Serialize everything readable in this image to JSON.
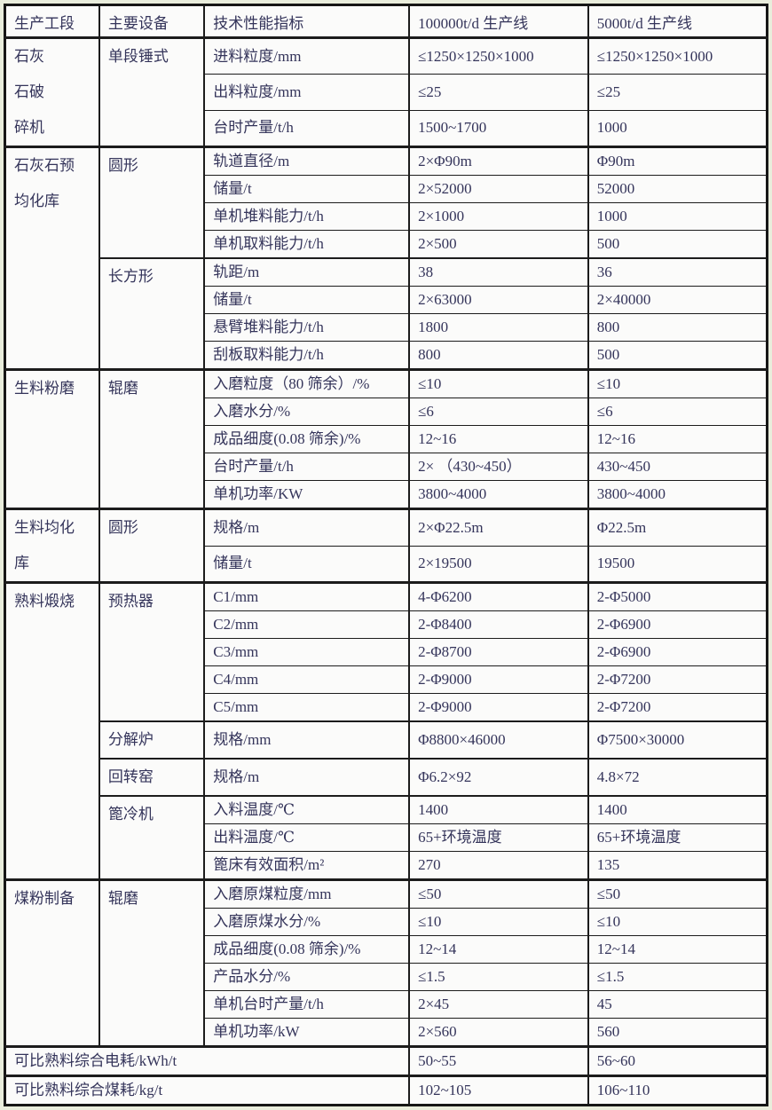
{
  "page": {
    "margin_color": "#e9eddc",
    "table_bg": "#fbfbfa",
    "border_color": "#1c1c1c",
    "text_color": "#34345a"
  },
  "header": {
    "columns": [
      "生产工段",
      "主要设备",
      "技术性能指标",
      "100000t/d 生产线",
      "5000t/d 生产线"
    ]
  },
  "sections": [
    {
      "stage": "石灰\n石破\n碎机",
      "groups": [
        {
          "equipment": "单段锤式",
          "rows": [
            {
              "indicator": "进料粒度/mm",
              "line1": "≤1250×1250×1000",
              "line2": "≤1250×1250×1000"
            },
            {
              "indicator": "出料粒度/mm",
              "line1": "≤25",
              "line2": "≤25"
            },
            {
              "indicator": "台时产量/t/h",
              "line1": "1500~1700",
              "line2": "1000"
            }
          ]
        }
      ]
    },
    {
      "stage": "石灰石预\n均化库",
      "groups": [
        {
          "equipment": "圆形",
          "rows": [
            {
              "indicator": "轨道直径/m",
              "line1": "2×Φ90m",
              "line2": "Φ90m"
            },
            {
              "indicator": "储量/t",
              "line1": "2×52000",
              "line2": "52000"
            },
            {
              "indicator": "单机堆料能力/t/h",
              "line1": "2×1000",
              "line2": "1000"
            },
            {
              "indicator": "单机取料能力/t/h",
              "line1": "2×500",
              "line2": "500"
            }
          ]
        },
        {
          "equipment": "长方形",
          "rows": [
            {
              "indicator": "轨距/m",
              "line1": "38",
              "line2": "36"
            },
            {
              "indicator": "储量/t",
              "line1": "2×63000",
              "line2": "2×40000"
            },
            {
              "indicator": "悬臂堆料能力/t/h",
              "line1": "1800",
              "line2": "800"
            },
            {
              "indicator": "刮板取料能力/t/h",
              "line1": "800",
              "line2": "500"
            }
          ]
        }
      ]
    },
    {
      "stage": "生料粉磨",
      "groups": [
        {
          "equipment": "辊磨",
          "rows": [
            {
              "indicator": "入磨粒度（80 筛余）/%",
              "line1": "≤10",
              "line2": "≤10"
            },
            {
              "indicator": "入磨水分/%",
              "line1": "≤6",
              "line2": "≤6"
            },
            {
              "indicator": "成品细度(0.08 筛余)/%",
              "line1": "12~16",
              "line2": "12~16"
            },
            {
              "indicator": "台时产量/t/h",
              "line1": "2× （430~450）",
              "line2": "430~450"
            },
            {
              "indicator": "单机功率/KW",
              "line1": "3800~4000",
              "line2": "3800~4000"
            }
          ]
        }
      ]
    },
    {
      "stage": "生料均化\n库",
      "groups": [
        {
          "equipment": "圆形",
          "rows": [
            {
              "indicator": "规格/m",
              "line1": "2×Φ22.5m",
              "line2": "Φ22.5m"
            },
            {
              "indicator": "储量/t",
              "line1": "2×19500",
              "line2": "19500"
            }
          ]
        }
      ]
    },
    {
      "stage": "熟料煅烧",
      "groups": [
        {
          "equipment": "预热器",
          "rows": [
            {
              "indicator": "C1/mm",
              "line1": "4-Φ6200",
              "line2": "2-Φ5000"
            },
            {
              "indicator": "C2/mm",
              "line1": "2-Φ8400",
              "line2": "2-Φ6900"
            },
            {
              "indicator": "C3/mm",
              "line1": "2-Φ8700",
              "line2": "2-Φ6900"
            },
            {
              "indicator": "C4/mm",
              "line1": "2-Φ9000",
              "line2": "2-Φ7200"
            },
            {
              "indicator": "C5/mm",
              "line1": "2-Φ9000",
              "line2": "2-Φ7200"
            }
          ]
        },
        {
          "equipment": "分解炉",
          "rows": [
            {
              "indicator": "规格/mm",
              "line1": "Φ8800×46000",
              "line2": "Φ7500×30000"
            }
          ]
        },
        {
          "equipment": "回转窑",
          "rows": [
            {
              "indicator": "规格/m",
              "line1": "Φ6.2×92",
              "line2": "4.8×72"
            }
          ]
        },
        {
          "equipment": "篦冷机",
          "rows": [
            {
              "indicator": "入料温度/℃",
              "line1": "1400",
              "line2": "1400"
            },
            {
              "indicator": "出料温度/℃",
              "line1": "65+环境温度",
              "line2": "65+环境温度"
            },
            {
              "indicator": "篦床有效面积/m²",
              "line1": "270",
              "line2": "135"
            }
          ]
        }
      ]
    },
    {
      "stage": "煤粉制备",
      "groups": [
        {
          "equipment": "辊磨",
          "rows": [
            {
              "indicator": "入磨原煤粒度/mm",
              "line1": "≤50",
              "line2": "≤50"
            },
            {
              "indicator": "入磨原煤水分/%",
              "line1": "≤10",
              "line2": "≤10"
            },
            {
              "indicator": "成品细度(0.08 筛余)/%",
              "line1": "12~14",
              "line2": "12~14"
            },
            {
              "indicator": "产品水分/%",
              "line1": "≤1.5",
              "line2": "≤1.5"
            },
            {
              "indicator": "单机台时产量/t/h",
              "line1": "2×45",
              "line2": "45"
            },
            {
              "indicator": "单机功率/kW",
              "line1": "2×560",
              "line2": "560"
            }
          ]
        }
      ]
    }
  ],
  "footers": [
    {
      "label": "可比熟料综合电耗/kWh/t",
      "line1": "50~55",
      "line2": "56~60"
    },
    {
      "label": "可比熟料综合煤耗/kg/t",
      "line1": "102~105",
      "line2": "106~110"
    }
  ]
}
